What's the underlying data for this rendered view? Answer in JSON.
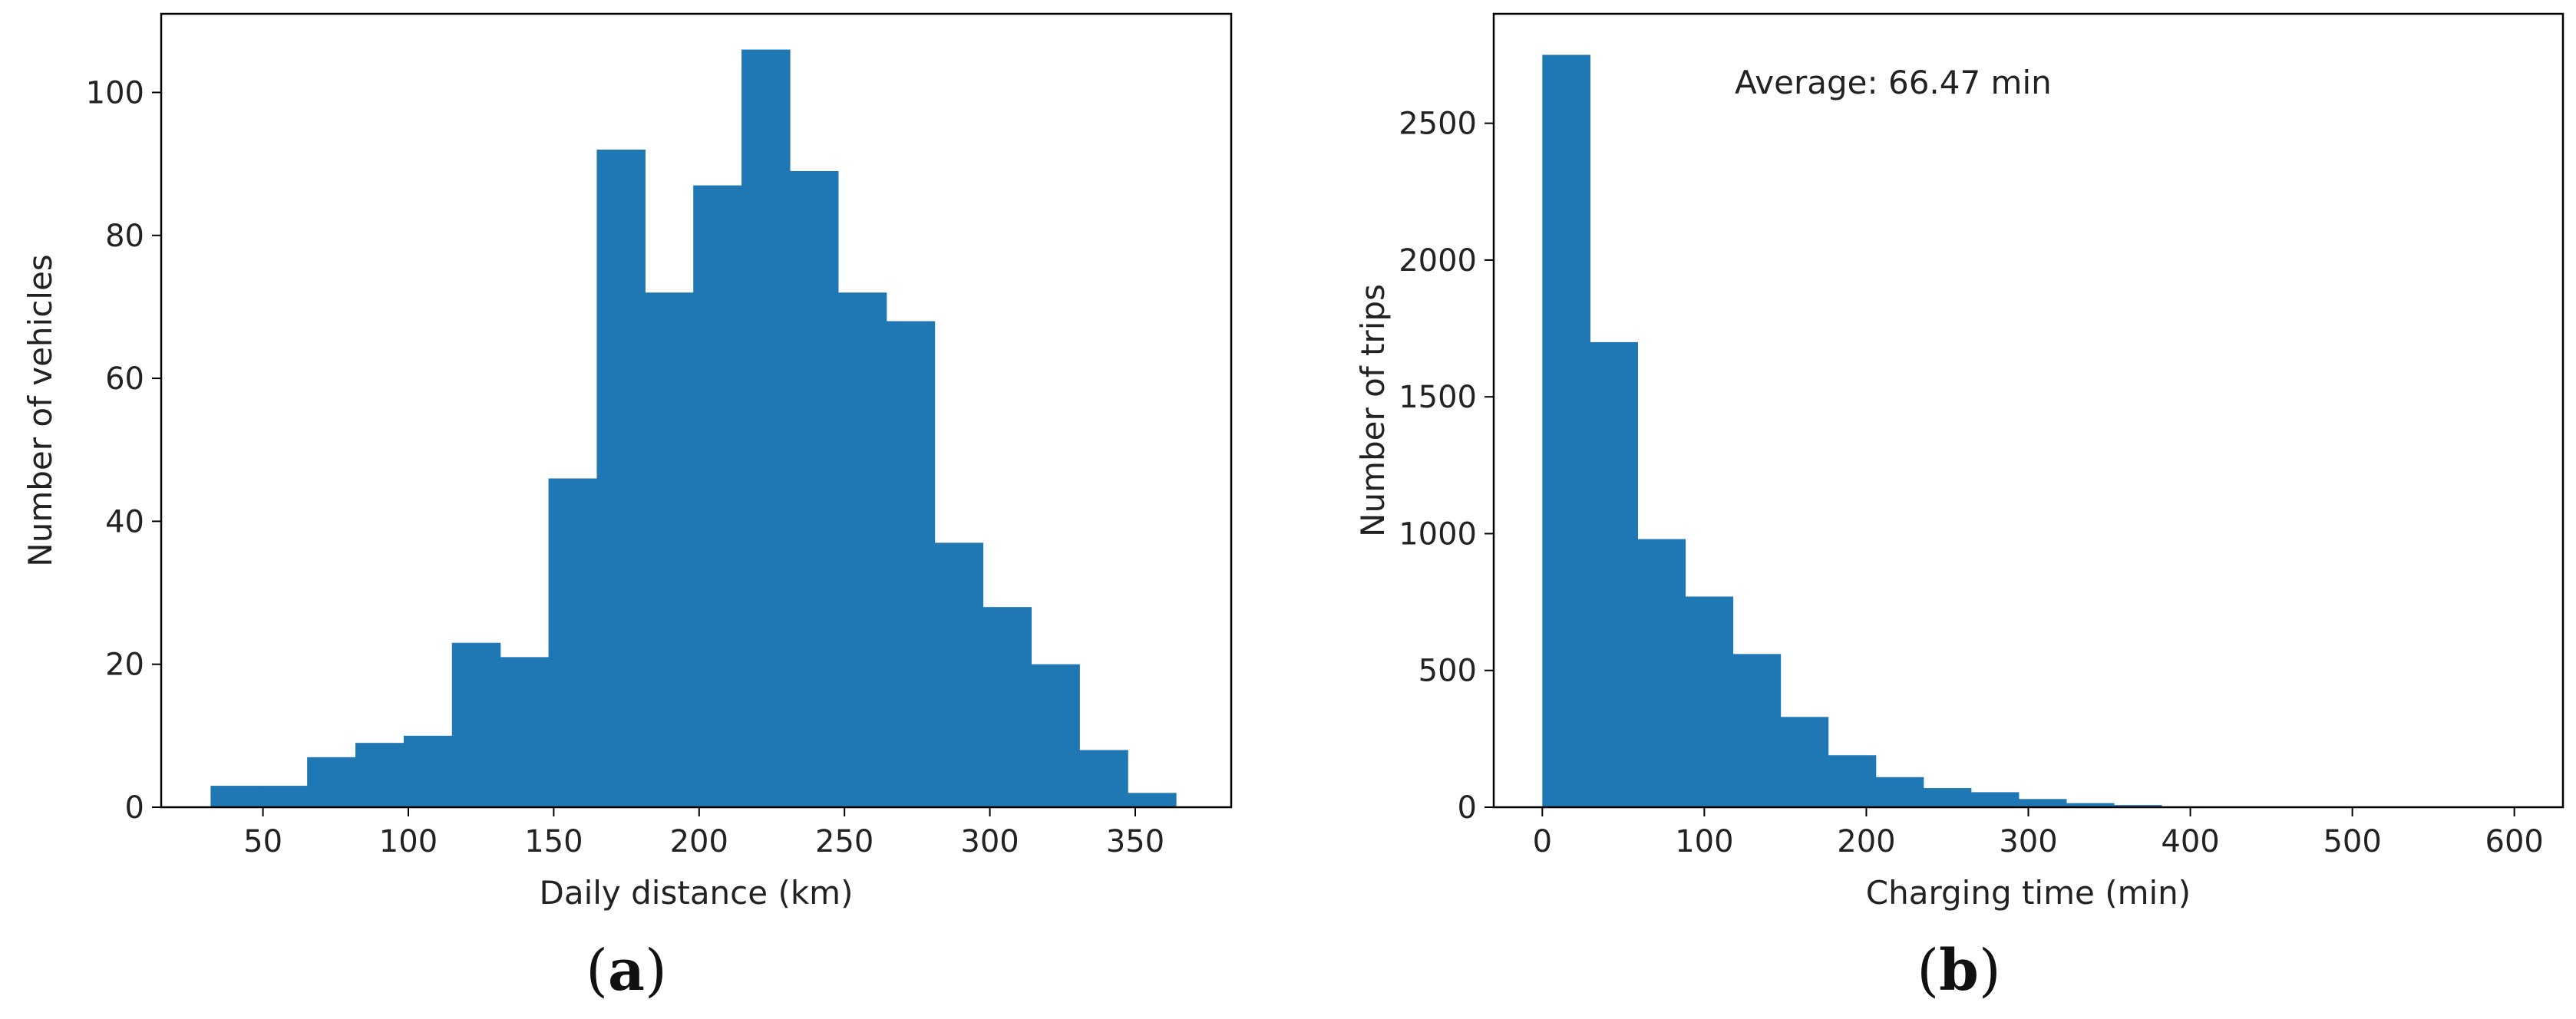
{
  "chart_data": [
    {
      "type": "bar",
      "panel_label": "(a)",
      "panel_letter": "a",
      "xlabel": "Daily distance (km)",
      "ylabel": "Number of vehicles",
      "xlim": [
        15,
        383
      ],
      "ylim": [
        0,
        111
      ],
      "xticks": [
        50,
        100,
        150,
        200,
        250,
        300,
        350
      ],
      "yticks": [
        0,
        20,
        40,
        60,
        80,
        100
      ],
      "bin_edges": [
        32,
        48.6,
        65.2,
        81.8,
        98.4,
        115,
        131.6,
        148.2,
        164.8,
        181.4,
        198,
        214.6,
        231.2,
        247.8,
        264.4,
        281,
        297.6,
        314.2,
        330.8,
        347.4,
        364
      ],
      "values": [
        3,
        3,
        7,
        9,
        10,
        23,
        21,
        46,
        92,
        72,
        87,
        106,
        89,
        72,
        68,
        37,
        28,
        20,
        8,
        2
      ],
      "color": "#1f77b4",
      "grid": false
    },
    {
      "type": "bar",
      "panel_label": "(b)",
      "panel_letter": "b",
      "xlabel": "Charging time (min)",
      "ylabel": "Number of trips",
      "xlim": [
        -30,
        630
      ],
      "ylim": [
        0,
        2900
      ],
      "xticks": [
        0,
        100,
        200,
        300,
        400,
        500,
        600
      ],
      "yticks": [
        0,
        500,
        1000,
        1500,
        2000,
        2500
      ],
      "bin_edges": [
        0,
        29.4,
        58.8,
        88.2,
        117.6,
        147,
        176.4,
        205.8,
        235.2,
        264.6,
        294,
        323.4,
        352.8,
        382.2,
        411.6,
        441,
        470.4,
        499.8,
        529.2,
        558.6,
        588
      ],
      "values": [
        2750,
        1700,
        980,
        770,
        560,
        330,
        190,
        110,
        70,
        55,
        30,
        15,
        8,
        3,
        2,
        1,
        1,
        0,
        0,
        1
      ],
      "color": "#1f77b4",
      "annotation": "Average: 66.47 min",
      "grid": false
    }
  ]
}
